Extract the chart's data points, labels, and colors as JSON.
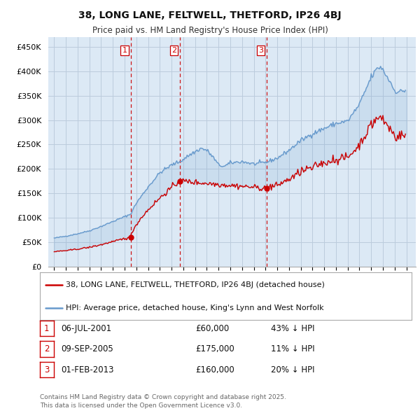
{
  "title": "38, LONG LANE, FELTWELL, THETFORD, IP26 4BJ",
  "subtitle": "Price paid vs. HM Land Registry's House Price Index (HPI)",
  "background_color": "#ffffff",
  "chart_bg_color": "#dce9f5",
  "grid_color": "#bbccdd",
  "sale_color": "#cc0000",
  "hpi_color": "#6699cc",
  "vline_color": "#cc0000",
  "ylim": [
    0,
    470000
  ],
  "yticks": [
    0,
    50000,
    100000,
    150000,
    200000,
    250000,
    300000,
    350000,
    400000,
    450000
  ],
  "ytick_labels": [
    "£0",
    "£50K",
    "£100K",
    "£150K",
    "£200K",
    "£250K",
    "£300K",
    "£350K",
    "£400K",
    "£450K"
  ],
  "legend_sale": "38, LONG LANE, FELTWELL, THETFORD, IP26 4BJ (detached house)",
  "legend_hpi": "HPI: Average price, detached house, King's Lynn and West Norfolk",
  "sale_dates_num": [
    2001.51,
    2005.69,
    2013.08
  ],
  "sale_prices": [
    60000,
    175000,
    160000
  ],
  "vline_dates": [
    2001.51,
    2005.69,
    2013.08
  ],
  "table_rows": [
    {
      "label": "1",
      "date": "06-JUL-2001",
      "price": "£60,000",
      "hpi": "43% ↓ HPI"
    },
    {
      "label": "2",
      "date": "09-SEP-2005",
      "price": "£175,000",
      "hpi": "11% ↓ HPI"
    },
    {
      "label": "3",
      "date": "01-FEB-2013",
      "price": "£160,000",
      "hpi": "20% ↓ HPI"
    }
  ],
  "footnote": "Contains HM Land Registry data © Crown copyright and database right 2025.\nThis data is licensed under the Open Government Licence v3.0.",
  "xlim_start": 1994.5,
  "xlim_end": 2025.8
}
